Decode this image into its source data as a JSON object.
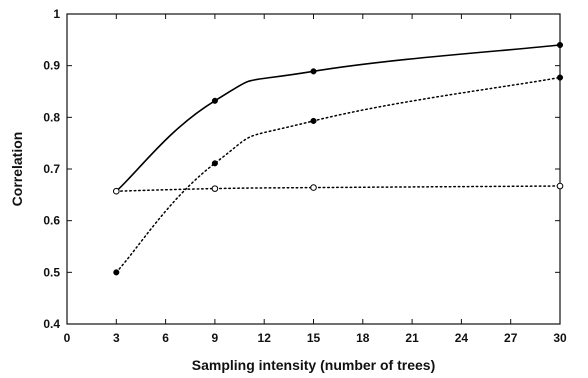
{
  "chart_data": {
    "type": "line",
    "title": "",
    "xlabel": "Sampling intensity (number of trees)",
    "ylabel": "Correlation",
    "xlim": [
      0,
      30
    ],
    "ylim": [
      0.4,
      1.0
    ],
    "xticks": [
      0,
      3,
      6,
      9,
      12,
      15,
      18,
      21,
      24,
      27,
      30
    ],
    "yticks": [
      0.4,
      0.5,
      0.6,
      0.7,
      0.8,
      0.9,
      1.0
    ],
    "xtick_labels": [
      "0",
      "3",
      "6",
      "9",
      "12",
      "15",
      "18",
      "21",
      "24",
      "27",
      "30"
    ],
    "ytick_labels": [
      "0.4",
      "0.5",
      "0.6",
      "0.7",
      "0.8",
      "0.9",
      "1"
    ],
    "grid": false,
    "legend": false,
    "series": [
      {
        "line_style": "solid",
        "marker": "filled",
        "color": "#000000",
        "x": [
          3,
          9,
          15,
          30
        ],
        "y": [
          0.657,
          0.832,
          0.889,
          0.94
        ]
      },
      {
        "line_style": "dotted",
        "marker": "filled",
        "color": "#000000",
        "x": [
          3,
          9,
          15,
          30
        ],
        "y": [
          0.5,
          0.711,
          0.793,
          0.877
        ]
      },
      {
        "line_style": "dotted",
        "marker": "open",
        "color": "#000000",
        "x": [
          3,
          9,
          15,
          30
        ],
        "y": [
          0.657,
          0.662,
          0.664,
          0.667
        ]
      }
    ]
  }
}
